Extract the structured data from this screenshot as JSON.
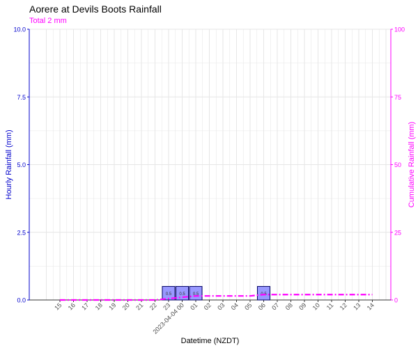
{
  "chart_data": {
    "type": "bar",
    "title": "Aorere at Devils Boots Rainfall",
    "subtitle": "Total 2 mm",
    "xlabel": "Datetime (NZDT)",
    "ylabel": "Hourly Rainfall (mm)",
    "y2label": "Cumulative Rainfall (mm)",
    "ylim": [
      0,
      10
    ],
    "y2lim": [
      0,
      100
    ],
    "y_ticks": [
      "0.0",
      "2.5",
      "5.0",
      "7.5",
      "10.0"
    ],
    "y2_ticks": [
      "0",
      "25",
      "50",
      "75",
      "100"
    ],
    "x_tick_labels": [
      "15",
      "16",
      "17",
      "18",
      "19",
      "20",
      "21",
      "22",
      "23",
      "2023-04-04 00",
      "01",
      "02",
      "03",
      "04",
      "05",
      "06",
      "07",
      "08",
      "09",
      "10",
      "11",
      "12",
      "13",
      "14"
    ],
    "categories": [
      "15",
      "16",
      "17",
      "18",
      "19",
      "20",
      "21",
      "22",
      "23",
      "2023-04-04 00",
      "01",
      "02",
      "03",
      "04",
      "05",
      "06",
      "07",
      "08",
      "09",
      "10",
      "11",
      "12",
      "13",
      "14"
    ],
    "series": [
      {
        "name": "Hourly Rainfall (mm)",
        "type": "bar",
        "axis": "left",
        "values": [
          0,
          0,
          0,
          0,
          0,
          0,
          0,
          0,
          0.5,
          0.5,
          0.5,
          0,
          0,
          0,
          0,
          0.5,
          0,
          0,
          0,
          0,
          0,
          0,
          0,
          0
        ],
        "labels": [
          "",
          "",
          "",
          "",
          "",
          "",
          "",
          "",
          "0.5",
          "0.5",
          "0.5",
          "",
          "",
          "",
          "",
          "0.5",
          "",
          "",
          "",
          "",
          "",
          "",
          "",
          ""
        ]
      },
      {
        "name": "Cumulative Rainfall (mm)",
        "type": "line",
        "axis": "right",
        "values": [
          0,
          0,
          0,
          0,
          0,
          0,
          0,
          0,
          0.5,
          1.0,
          1.5,
          1.5,
          1.5,
          1.5,
          1.5,
          2.0,
          2.0,
          2.0,
          2.0,
          2.0,
          2.0,
          2.0,
          2.0,
          2.0
        ]
      }
    ],
    "grid": true,
    "colors": {
      "left_axis": "#0000cc",
      "right_axis": "#ff00ff",
      "bar_fill": "#9999ff",
      "bar_stroke": "#000066",
      "line": "#ff00ff",
      "grid": "#e6e6e6"
    }
  }
}
